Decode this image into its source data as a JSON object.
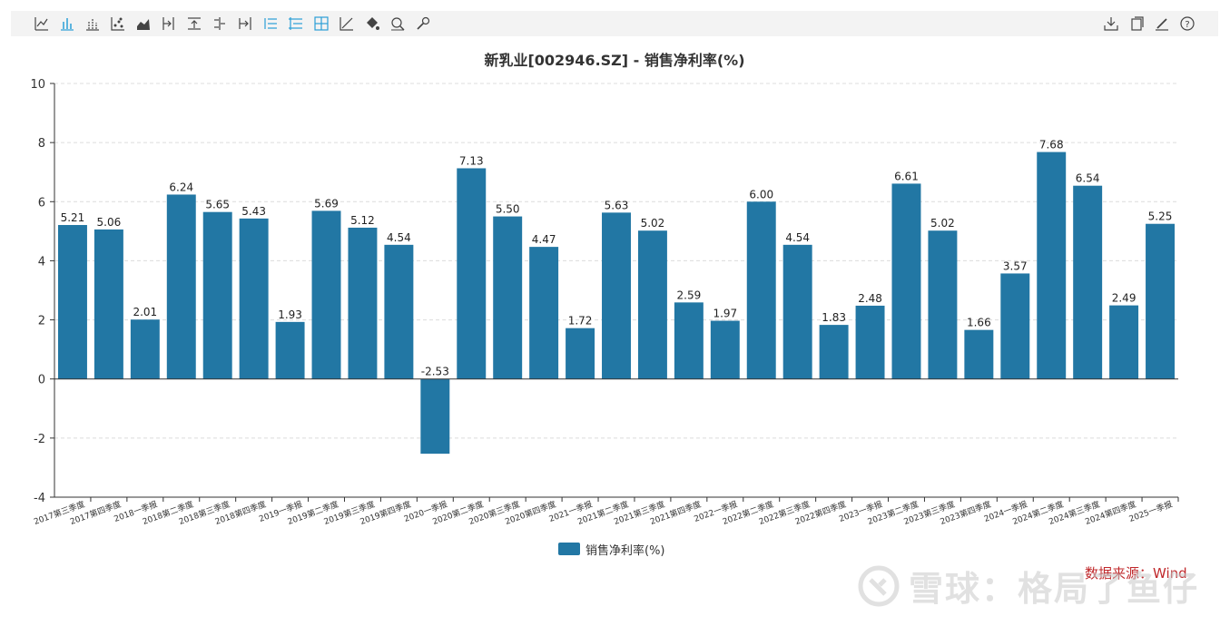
{
  "toolbar": {
    "left_icons": [
      "line-chart-icon",
      "bar-chart-icon",
      "stacked-bar-icon",
      "scatter-icon",
      "area-chart-icon",
      "step-forward-icon",
      "upload-icon",
      "list-tree-icon",
      "step-end-icon",
      "list-ordered-icon",
      "list-indent-icon",
      "zoom-box-icon",
      "trend-icon",
      "fill-bucket-icon",
      "zoom-search-icon",
      "wrench-icon"
    ],
    "right_icons": [
      "download-icon",
      "copy-icon",
      "edit-icon",
      "help-icon"
    ]
  },
  "source_text": "数据来源：Wind",
  "watermark_text": "雪球：格局了鱼仔",
  "colors": {
    "bar": "#2277a4",
    "source": "#c0282b"
  },
  "chart_data": {
    "type": "bar",
    "title": "新乳业[002946.SZ] - 销售净利率(%)",
    "xlabel": "",
    "ylabel": "",
    "ylim": [
      -4,
      10
    ],
    "yticks": [
      -4,
      -2,
      0,
      2,
      4,
      6,
      8,
      10
    ],
    "grid": true,
    "legend_position": "bottom-center",
    "categories": [
      "2017第三季度",
      "2017第四季度",
      "2018一季报",
      "2018第二季度",
      "2018第三季度",
      "2018第四季度",
      "2019一季报",
      "2019第二季度",
      "2019第三季度",
      "2019第四季度",
      "2020一季报",
      "2020第二季度",
      "2020第三季度",
      "2020第四季度",
      "2021一季报",
      "2021第二季度",
      "2021第三季度",
      "2021第四季度",
      "2022一季报",
      "2022第二季度",
      "2022第三季度",
      "2022第四季度",
      "2023一季报",
      "2023第二季度",
      "2023第三季度",
      "2023第四季度",
      "2024一季报",
      "2024第二季度",
      "2024第三季度",
      "2024第四季度",
      "2025一季报"
    ],
    "series": [
      {
        "name": "销售净利率(%)",
        "values": [
          5.21,
          5.06,
          2.01,
          6.24,
          5.65,
          5.43,
          1.93,
          5.69,
          5.12,
          4.54,
          -2.53,
          7.13,
          5.5,
          4.47,
          1.72,
          5.63,
          5.02,
          2.59,
          1.97,
          6.0,
          4.54,
          1.83,
          2.48,
          6.61,
          5.02,
          1.66,
          3.57,
          7.68,
          6.54,
          2.49,
          5.25
        ],
        "labels": [
          "5.21",
          "5.06",
          "2.01",
          "6.24",
          "5.65",
          "5.43",
          "1.93",
          "5.69",
          "5.12",
          "4.54",
          "-2.53",
          "7.13",
          "5.50",
          "4.47",
          "1.72",
          "5.63",
          "5.02",
          "2.59",
          "1.97",
          "6.00",
          "4.54",
          "1.83",
          "2.48",
          "6.61",
          "5.02",
          "1.66",
          "3.57",
          "7.68",
          "6.54",
          "2.49",
          "5.25"
        ]
      }
    ]
  }
}
